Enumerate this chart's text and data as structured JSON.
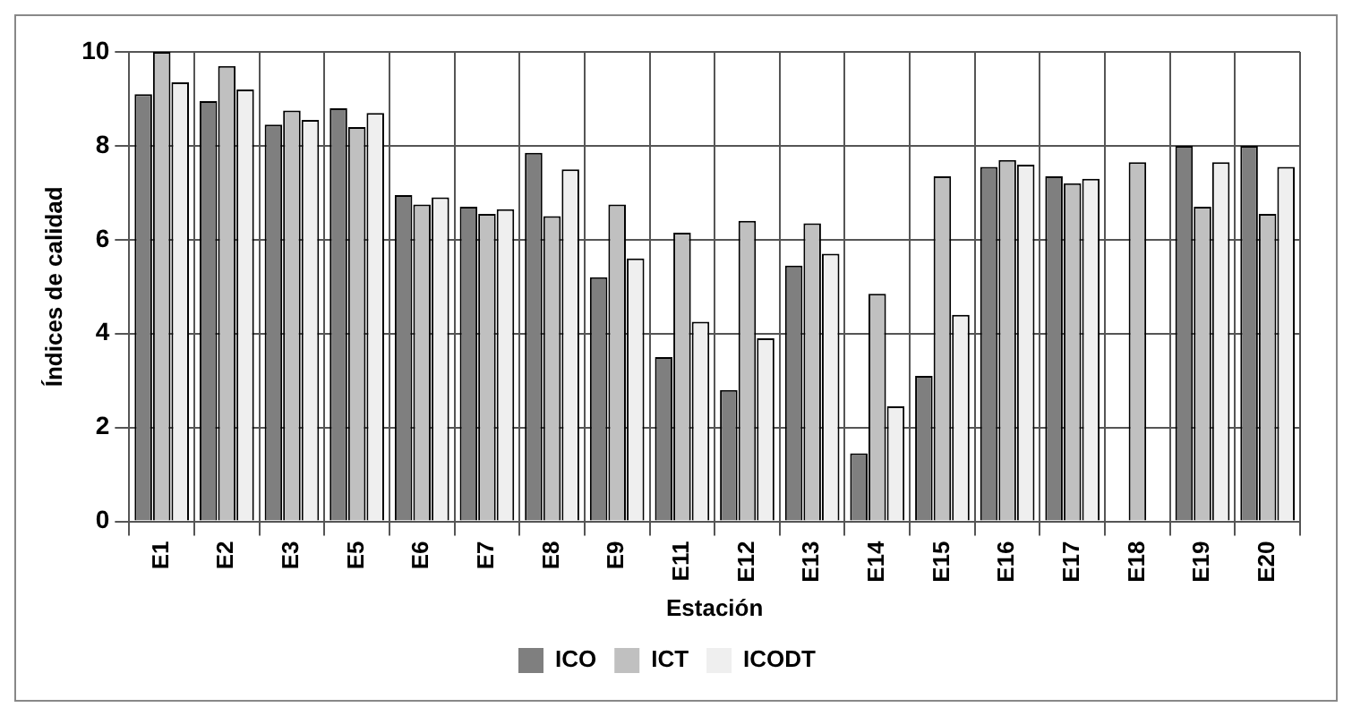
{
  "chart_data": {
    "type": "bar",
    "xlabel": "Estación",
    "ylabel": "Índices de calidad",
    "categories": [
      "E1",
      "E2",
      "E3",
      "E5",
      "E6",
      "E7",
      "E8",
      "E9",
      "E11",
      "E12",
      "E13",
      "E14",
      "E15",
      "E16",
      "E17",
      "E18",
      "E19",
      "E20"
    ],
    "series": [
      {
        "name": "ICO",
        "color": "#7f7f7f",
        "values": [
          9.1,
          8.95,
          8.45,
          8.8,
          6.95,
          6.7,
          7.85,
          5.2,
          3.5,
          2.8,
          5.45,
          1.45,
          3.1,
          7.55,
          7.35,
          null,
          8.0,
          8.0
        ]
      },
      {
        "name": "ICT",
        "color": "#c0c0c0",
        "values": [
          10.0,
          9.7,
          8.75,
          8.4,
          6.75,
          6.55,
          6.5,
          6.75,
          6.15,
          6.4,
          6.35,
          4.85,
          7.35,
          7.7,
          7.2,
          7.65,
          6.7,
          6.55
        ]
      },
      {
        "name": "ICODT",
        "color": "#efefef",
        "values": [
          9.35,
          9.2,
          8.55,
          8.7,
          6.9,
          6.65,
          7.5,
          5.6,
          4.25,
          3.9,
          5.7,
          2.45,
          4.4,
          7.6,
          7.3,
          null,
          7.65,
          7.55
        ]
      }
    ],
    "ylim": [
      0,
      10
    ],
    "yticks": [
      0,
      2,
      4,
      6,
      8,
      10
    ],
    "grid": true,
    "legend": "bottom"
  }
}
